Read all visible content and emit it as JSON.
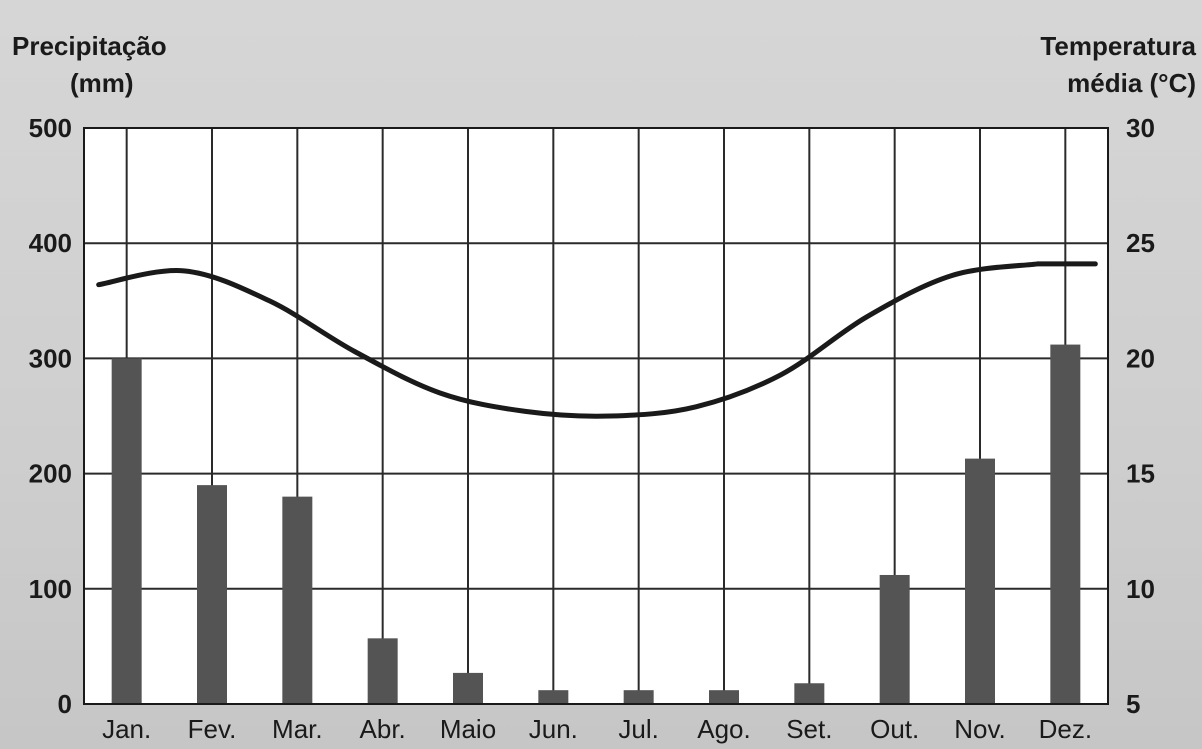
{
  "chart_data": {
    "type": "bar",
    "categories": [
      "Jan.",
      "Fev.",
      "Mar.",
      "Abr.",
      "Maio",
      "Jun.",
      "Jul.",
      "Ago.",
      "Set.",
      "Out.",
      "Nov.",
      "Dez."
    ],
    "y_left_label": [
      "Precipitação",
      "(mm)"
    ],
    "y_right_label": [
      "Temperatura",
      "média (°C)"
    ],
    "y_left_range": [
      0,
      500
    ],
    "y_left_ticks": [
      0,
      100,
      200,
      300,
      400,
      500
    ],
    "y_right_range": [
      5,
      30
    ],
    "y_right_ticks": [
      5,
      10,
      15,
      20,
      25,
      30
    ],
    "series": [
      {
        "type": "bar",
        "axis": "left",
        "values": [
          300,
          190,
          180,
          57,
          27,
          12,
          12,
          12,
          18,
          112,
          213,
          312
        ]
      },
      {
        "type": "line",
        "axis": "right",
        "values": [
          23.2,
          23.8,
          22.5,
          20.3,
          18.5,
          17.7,
          17.5,
          17.9,
          19.3,
          21.8,
          23.6,
          24.1
        ]
      }
    ],
    "grid": true,
    "colors": {
      "bar": "#545454",
      "line": "#1a1a1a",
      "grid": "#2a2a2a",
      "plot_bg": "#ffffff"
    }
  }
}
